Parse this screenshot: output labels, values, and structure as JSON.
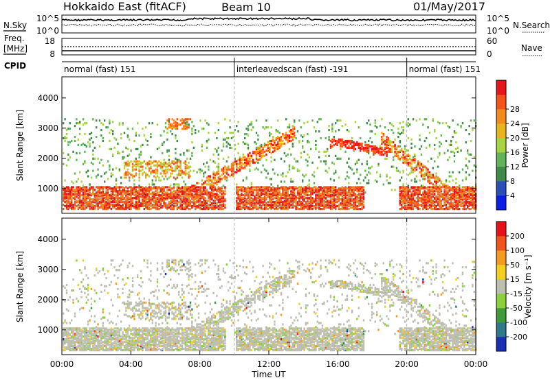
{
  "header": {
    "radar": "Hokkaido East (fitACF)",
    "beam": "Beam 10",
    "date": "01/May/2017"
  },
  "top_panels": {
    "nsky_label": "N.Sky",
    "nsky_ticks": [
      "10^5",
      "10^0"
    ],
    "nsky_right_ticks": [
      "10^5",
      "10^0"
    ],
    "nsearch_label": "N.Search",
    "freq_label_1": "Freq.",
    "freq_label_2": "[MHz]",
    "freq_ticks": [
      "18",
      "8"
    ],
    "nave_ticks": [
      "60",
      "0"
    ],
    "nave_label": "Nave",
    "cpid_label": "CPID"
  },
  "cpid_segments": [
    {
      "label": "normal (fast) 151",
      "start_h": 0,
      "end_h": 10
    },
    {
      "label": "interleavedscan (fast) -191",
      "start_h": 10,
      "end_h": 20
    },
    {
      "label": "normal (fast) 151",
      "start_h": 20,
      "end_h": 24
    }
  ],
  "chart_data": [
    {
      "type": "heatmap",
      "ylabel": "Slant Range [km]",
      "yticks": [
        "1000",
        "2000",
        "3000",
        "4000"
      ],
      "ylim": [
        180,
        4700
      ],
      "xlim": [
        0,
        24
      ],
      "colorbar": {
        "label": "Power [dB]",
        "ticks": [
          "4",
          "8",
          "12",
          "16",
          "20",
          "24",
          "28"
        ],
        "colors": [
          "#0a1ee6",
          "#2a4fb8",
          "#3d8a4a",
          "#62b45a",
          "#a8d444",
          "#e8b41c",
          "#f28a1c",
          "#f4541a",
          "#e8161a"
        ]
      }
    },
    {
      "type": "heatmap",
      "ylabel": "Slant Range [km]",
      "yticks": [
        "1000",
        "2000",
        "3000",
        "4000"
      ],
      "ylim": [
        180,
        4700
      ],
      "xlim": [
        0,
        24
      ],
      "xticks": [
        "00:00",
        "04:00",
        "08:00",
        "12:00",
        "16:00",
        "20:00",
        "00:00"
      ],
      "xlabel": "Time UT",
      "colorbar": {
        "label": "Velocity [m s⁻¹]",
        "ticks": [
          "200",
          "100",
          "50",
          "15",
          "-15",
          "-50",
          "-100",
          "-200"
        ],
        "colors": [
          "#1a2fb4",
          "#2e7a8c",
          "#3f9a3a",
          "#8cd03a",
          "#bebeb0",
          "#f4d01c",
          "#f49a1c",
          "#f0541a",
          "#e8101a"
        ]
      }
    }
  ]
}
